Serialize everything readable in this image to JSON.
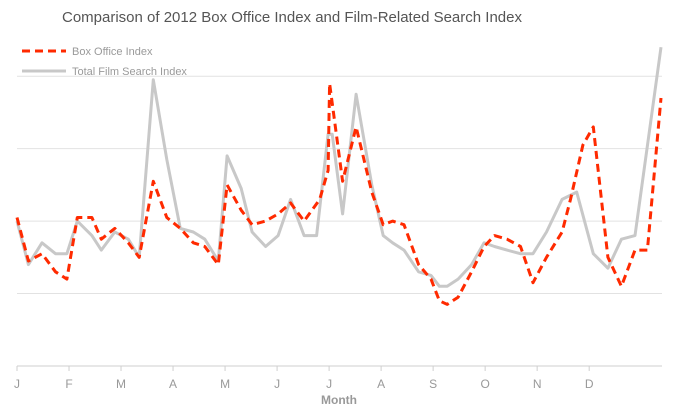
{
  "chart_data": {
    "type": "line",
    "title": "Comparison of 2012 Box Office Index and Film-Related Search Index",
    "xlabel": "Month",
    "ylabel": "",
    "x_tick_labels": [
      "J",
      "F",
      "M",
      "A",
      "M",
      "J",
      "J",
      "A",
      "S",
      "O",
      "N",
      "D"
    ],
    "ylim": [
      0,
      9
    ],
    "grid": true,
    "legend_position": "top-left",
    "series": [
      {
        "name": "Box Office Index",
        "color": "#ff2a00",
        "style": "dashed",
        "values": [
          4.1,
          2.9,
          3.1,
          2.6,
          2.4,
          4.1,
          4.1,
          3.5,
          3.8,
          3.4,
          3.0,
          5.1,
          4.1,
          3.8,
          3.4,
          3.3,
          2.8,
          5.0,
          4.3,
          3.9,
          4.0,
          4.2,
          4.5,
          4.0,
          4.6,
          5.4,
          7.8,
          5.1,
          6.6,
          4.8,
          3.9,
          4.0,
          3.9,
          2.8,
          2.4,
          1.8,
          1.7,
          1.9,
          2.6,
          3.3,
          3.6,
          3.5,
          3.3,
          2.3,
          3.0,
          3.7,
          4.6,
          6.1,
          6.6,
          3.0,
          2.2,
          3.2,
          3.2,
          7.4
        ],
        "x": [
          1.0,
          1.22,
          1.48,
          1.74,
          1.96,
          2.16,
          2.44,
          2.62,
          2.88,
          3.14,
          3.35,
          3.62,
          3.88,
          4.14,
          4.39,
          4.61,
          4.87,
          5.04,
          5.31,
          5.52,
          5.78,
          6.02,
          6.26,
          6.52,
          6.82,
          6.98,
          7.01,
          7.26,
          7.52,
          7.82,
          8.04,
          8.22,
          8.44,
          8.72,
          8.96,
          9.12,
          9.27,
          9.48,
          9.74,
          9.98,
          10.18,
          10.42,
          10.68,
          10.92,
          11.18,
          11.48,
          11.64,
          11.88,
          12.08,
          12.36,
          12.62,
          12.88,
          13.12,
          13.38
        ]
      },
      {
        "name": "Total Film Search Index",
        "color": "#c8c8c8",
        "style": "solid",
        "values": [
          4.0,
          2.8,
          3.4,
          3.1,
          3.1,
          4.0,
          3.6,
          3.2,
          3.7,
          3.5,
          3.0,
          7.9,
          5.7,
          3.8,
          3.7,
          3.5,
          2.9,
          5.8,
          4.9,
          3.7,
          3.3,
          3.6,
          4.6,
          3.6,
          3.6,
          6.4,
          6.4,
          4.2,
          7.5,
          5.0,
          3.6,
          3.4,
          3.2,
          2.6,
          2.5,
          2.2,
          2.2,
          2.4,
          2.8,
          3.4,
          3.3,
          3.2,
          3.1,
          3.1,
          3.7,
          4.6,
          4.8,
          3.1,
          2.7,
          3.5,
          3.6,
          8.8
        ],
        "x": [
          1.0,
          1.22,
          1.48,
          1.74,
          1.96,
          2.16,
          2.44,
          2.62,
          2.88,
          3.14,
          3.35,
          3.62,
          3.88,
          4.14,
          4.39,
          4.61,
          4.87,
          5.04,
          5.31,
          5.52,
          5.78,
          6.02,
          6.26,
          6.52,
          6.76,
          6.98,
          7.06,
          7.26,
          7.52,
          7.82,
          8.04,
          8.22,
          8.44,
          8.72,
          8.96,
          9.12,
          9.27,
          9.48,
          9.74,
          9.98,
          10.18,
          10.42,
          10.68,
          10.92,
          11.18,
          11.48,
          11.76,
          12.08,
          12.36,
          12.62,
          12.88,
          13.38
        ]
      }
    ]
  }
}
